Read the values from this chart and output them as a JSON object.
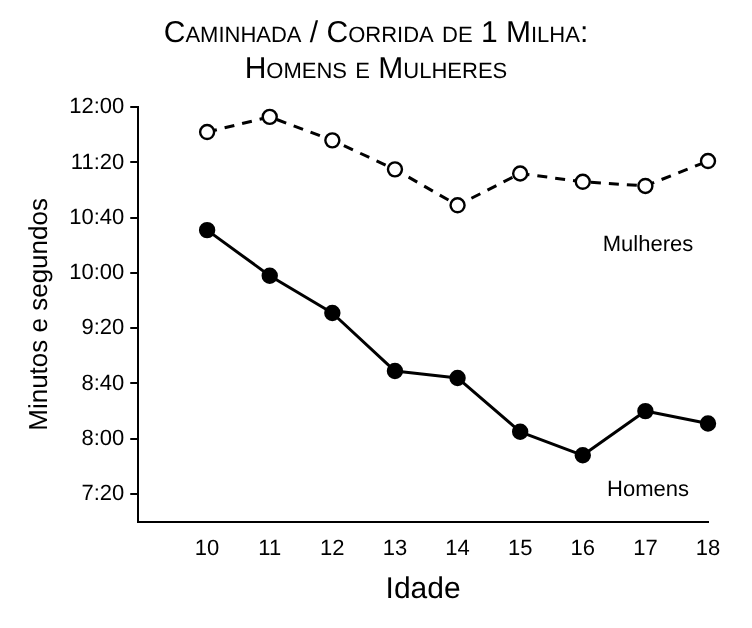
{
  "chart_data": {
    "type": "line",
    "title": "Caminhada / Corrida de 1 Milha: Homens e Mulheres",
    "xlabel": "Idade",
    "ylabel": "Minutos e segundos",
    "x": [
      10,
      11,
      12,
      13,
      14,
      15,
      16,
      17,
      18
    ],
    "series": [
      {
        "name": "Mulheres",
        "color": "#000000",
        "values": [
          702,
          713,
          696,
          675,
          649,
          672,
          666,
          663,
          681
        ],
        "line_style": "dashed",
        "marker": "circle"
      },
      {
        "name": "Homens",
        "color": "#000000",
        "values": [
          631,
          598,
          571,
          529,
          524,
          485,
          468,
          500,
          491
        ],
        "line_style": "solid",
        "marker": "circle"
      }
    ],
    "xlim": [
      8.9,
      18
    ],
    "xticks": [
      10,
      11,
      12,
      13,
      14,
      15,
      16,
      17,
      18
    ],
    "ylim": [
      420,
      720
    ],
    "yticks": [
      {
        "value": 440,
        "label": "7:20"
      },
      {
        "value": 480,
        "label": "8:00"
      },
      {
        "value": 520,
        "label": "8:40"
      },
      {
        "value": 560,
        "label": "9:20"
      },
      {
        "value": 600,
        "label": "10:00"
      },
      {
        "value": 640,
        "label": "10:40"
      },
      {
        "value": 680,
        "label": "11:20"
      },
      {
        "value": 720,
        "label": "12:00"
      }
    ],
    "grid": false,
    "legend": false
  }
}
